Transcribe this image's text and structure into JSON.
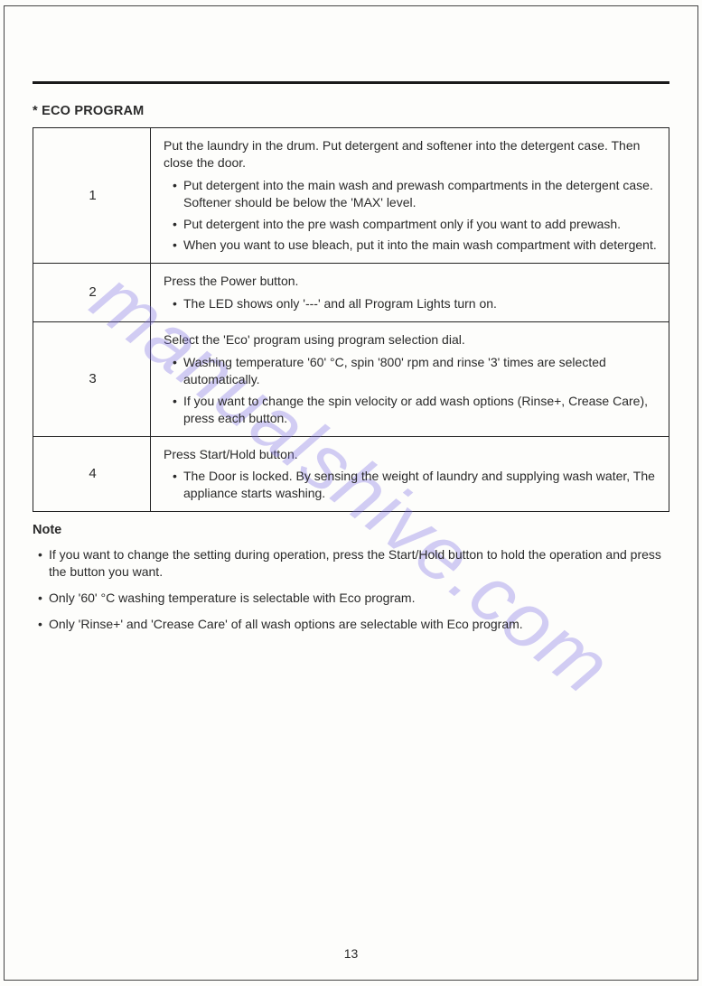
{
  "watermark_text": "manualshive.com",
  "section_title": "* ECO PROGRAM",
  "steps": [
    {
      "num": "1",
      "intro": "Put the laundry in the drum. Put detergent and softener into the detergent case. Then close the door.",
      "bullets": [
        "Put detergent into the main wash and prewash compartments in the detergent case. Softener should be below the 'MAX' level.",
        "Put detergent into the pre wash compartment only if you want to add prewash.",
        "When you want to use bleach, put it into the main wash compartment with detergent."
      ]
    },
    {
      "num": "2",
      "intro": "Press the Power button.",
      "bullets": [
        "The LED shows only '---' and all Program Lights turn on."
      ]
    },
    {
      "num": "3",
      "intro": "Select the 'Eco' program using program selection dial.",
      "bullets": [
        "Washing temperature '60' °C, spin '800' rpm and rinse '3' times are selected automatically.",
        "If you want to change the spin velocity or add wash options (Rinse+, Crease Care), press each button."
      ]
    },
    {
      "num": "4",
      "intro": "Press Start/Hold button.",
      "bullets": [
        "The Door is locked. By sensing the weight of laundry and supplying wash water, The appliance starts washing."
      ]
    }
  ],
  "note_heading": "Note",
  "notes": [
    "If you want to change the setting during operation, press the Start/Hold button to hold the operation and press the button you want.",
    "Only '60' °C washing temperature is selectable with Eco program.",
    "Only 'Rinse+' and 'Crease Care' of all wash options are selectable with Eco program."
  ],
  "page_number": "13"
}
